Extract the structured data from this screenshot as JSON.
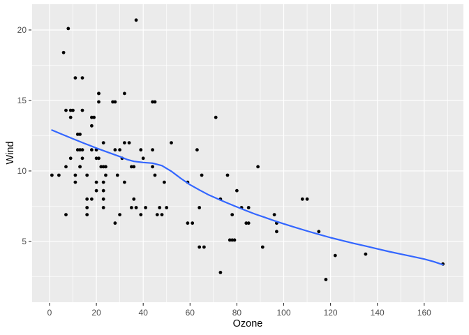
{
  "chart_data": {
    "type": "scatter",
    "title": "",
    "xlabel": "Ozone",
    "ylabel": "Wind",
    "legend": null,
    "grid": "on",
    "x_ticks": [
      0,
      20,
      40,
      60,
      80,
      100,
      120,
      140,
      160
    ],
    "x_minor_ticks": [
      10,
      30,
      50,
      70,
      90,
      110,
      130,
      150,
      170
    ],
    "y_ticks": [
      5,
      10,
      15,
      20
    ],
    "y_minor_ticks": [
      2.5,
      7.5,
      12.5,
      17.5
    ],
    "xlim": [
      -7.45,
      176.75
    ],
    "ylim": [
      0.69,
      21.83
    ],
    "colors": {
      "panel_background": "#EBEBEB",
      "plot_background": "#FFFFFF",
      "major_grid": "#FFFFFF",
      "minor_grid": "#FFFFFF",
      "point": "#000000",
      "smooth_line": "#3366FF",
      "tick_mark": "#333333",
      "tick_text": "#4D4D4D",
      "axis_title": "#000000"
    },
    "series": [
      {
        "name": "observations",
        "type": "scatter",
        "points": [
          [
            41,
            7.4
          ],
          [
            36,
            8
          ],
          [
            12,
            12.6
          ],
          [
            18,
            11.5
          ],
          [
            28,
            14.9
          ],
          [
            23,
            8.6
          ],
          [
            19,
            13.8
          ],
          [
            8,
            20.1
          ],
          [
            7,
            6.9
          ],
          [
            16,
            9.7
          ],
          [
            11,
            9.2
          ],
          [
            14,
            10.9
          ],
          [
            18,
            13.2
          ],
          [
            14,
            11.5
          ],
          [
            34,
            12
          ],
          [
            6,
            18.4
          ],
          [
            30,
            11.5
          ],
          [
            11,
            9.7
          ],
          [
            1,
            9.7
          ],
          [
            11,
            16.6
          ],
          [
            4,
            9.7
          ],
          [
            32,
            12
          ],
          [
            23,
            12
          ],
          [
            45,
            14.9
          ],
          [
            115,
            5.7
          ],
          [
            37,
            7.4
          ],
          [
            29,
            9.7
          ],
          [
            71,
            13.8
          ],
          [
            39,
            11.5
          ],
          [
            23,
            8
          ],
          [
            21,
            14.9
          ],
          [
            37,
            20.7
          ],
          [
            20,
            9.2
          ],
          [
            12,
            11.5
          ],
          [
            13,
            10.3
          ],
          [
            135,
            4.1
          ],
          [
            49,
            9.2
          ],
          [
            32,
            9.2
          ],
          [
            64,
            4.6
          ],
          [
            40,
            10.9
          ],
          [
            77,
            5.1
          ],
          [
            97,
            6.3
          ],
          [
            97,
            5.7
          ],
          [
            85,
            7.4
          ],
          [
            10,
            14.3
          ],
          [
            27,
            14.9
          ],
          [
            7,
            14.3
          ],
          [
            48,
            6.9
          ],
          [
            35,
            10.3
          ],
          [
            61,
            6.3
          ],
          [
            79,
            5.1
          ],
          [
            63,
            11.5
          ],
          [
            16,
            6.9
          ],
          [
            80,
            8.6
          ],
          [
            108,
            8
          ],
          [
            20,
            8.6
          ],
          [
            52,
            12
          ],
          [
            82,
            7.4
          ],
          [
            50,
            7.4
          ],
          [
            64,
            7.4
          ],
          [
            59,
            9.2
          ],
          [
            39,
            6.9
          ],
          [
            9,
            13.8
          ],
          [
            16,
            7.4
          ],
          [
            78,
            6.9
          ],
          [
            35,
            7.4
          ],
          [
            66,
            4.6
          ],
          [
            122,
            4
          ],
          [
            89,
            10.3
          ],
          [
            110,
            8
          ],
          [
            44,
            11.5
          ],
          [
            28,
            11.5
          ],
          [
            65,
            9.7
          ],
          [
            22,
            10.3
          ],
          [
            59,
            6.3
          ],
          [
            23,
            7.4
          ],
          [
            31,
            10.9
          ],
          [
            44,
            10.3
          ],
          [
            21,
            15.5
          ],
          [
            9,
            14.3
          ],
          [
            45,
            9.7
          ],
          [
            168,
            3.4
          ],
          [
            73,
            8
          ],
          [
            76,
            9.7
          ],
          [
            118,
            2.3
          ],
          [
            84,
            6.3
          ],
          [
            85,
            6.3
          ],
          [
            96,
            6.9
          ],
          [
            78,
            5.1
          ],
          [
            73,
            2.8
          ],
          [
            91,
            4.6
          ],
          [
            47,
            7.4
          ],
          [
            32,
            15.5
          ],
          [
            20,
            10.9
          ],
          [
            23,
            10.3
          ],
          [
            21,
            10.9
          ],
          [
            24,
            9.7
          ],
          [
            44,
            14.9
          ],
          [
            21,
            15.5
          ],
          [
            28,
            6.3
          ],
          [
            9,
            10.9
          ],
          [
            13,
            11.5
          ],
          [
            46,
            6.9
          ],
          [
            18,
            13.8
          ],
          [
            13,
            10.3
          ],
          [
            24,
            10.3
          ],
          [
            16,
            8
          ],
          [
            13,
            12.6
          ],
          [
            23,
            9.2
          ],
          [
            36,
            10.3
          ],
          [
            7,
            10.3
          ],
          [
            14,
            16.6
          ],
          [
            30,
            6.9
          ],
          [
            14,
            14.3
          ],
          [
            18,
            8
          ],
          [
            20,
            11.5
          ]
        ]
      },
      {
        "name": "loess-smooth",
        "type": "line",
        "color": "#3366FF",
        "points": [
          [
            1,
            12.9
          ],
          [
            5,
            12.62
          ],
          [
            10,
            12.28
          ],
          [
            15,
            11.95
          ],
          [
            20,
            11.62
          ],
          [
            25,
            11.32
          ],
          [
            30,
            11.02
          ],
          [
            33,
            10.82
          ],
          [
            36,
            10.68
          ],
          [
            40,
            10.6
          ],
          [
            44,
            10.55
          ],
          [
            48,
            10.38
          ],
          [
            52,
            9.98
          ],
          [
            56,
            9.48
          ],
          [
            60,
            9.02
          ],
          [
            64,
            8.65
          ],
          [
            68,
            8.3
          ],
          [
            72,
            8.0
          ],
          [
            76,
            7.72
          ],
          [
            80,
            7.45
          ],
          [
            84,
            7.18
          ],
          [
            88,
            6.93
          ],
          [
            92,
            6.7
          ],
          [
            96,
            6.47
          ],
          [
            100,
            6.25
          ],
          [
            105,
            5.99
          ],
          [
            110,
            5.74
          ],
          [
            115,
            5.5
          ],
          [
            120,
            5.27
          ],
          [
            125,
            5.06
          ],
          [
            130,
            4.86
          ],
          [
            135,
            4.67
          ],
          [
            140,
            4.47
          ],
          [
            145,
            4.28
          ],
          [
            150,
            4.1
          ],
          [
            155,
            3.93
          ],
          [
            160,
            3.75
          ],
          [
            164,
            3.57
          ],
          [
            168,
            3.35
          ]
        ]
      }
    ]
  }
}
